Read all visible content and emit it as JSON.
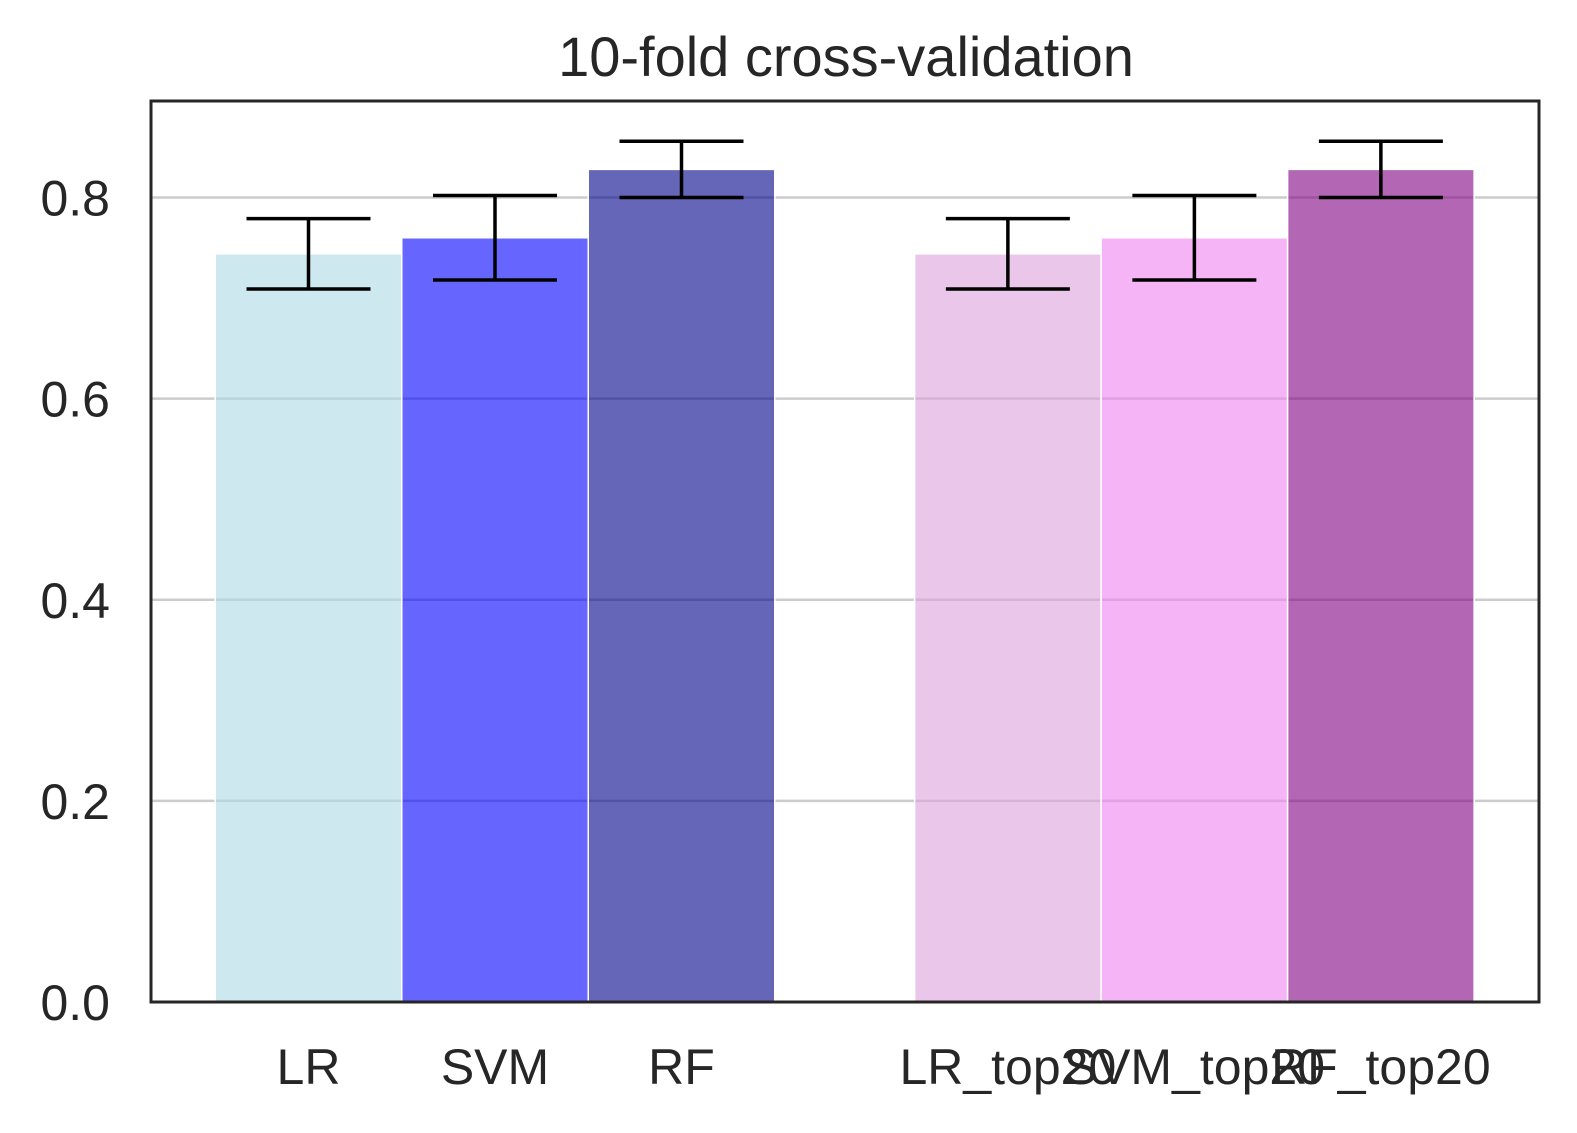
{
  "chart_data": {
    "type": "bar",
    "title": "10-fold cross-validation",
    "xlabel": "",
    "ylabel": "",
    "ylim": [
      0,
      0.896
    ],
    "yticks": [
      0.0,
      0.2,
      0.4,
      0.6,
      0.8
    ],
    "ytick_labels": [
      "0.0",
      "0.2",
      "0.4",
      "0.6",
      "0.8"
    ],
    "grid": "horizontal",
    "categories": [
      "LR",
      "SVM",
      "RF",
      "LR_top20",
      "SVM_top20",
      "RF_top20"
    ],
    "x_positions": [
      0,
      1,
      2,
      3.75,
      4.75,
      5.75
    ],
    "values": [
      0.744,
      0.76,
      0.828,
      0.744,
      0.76,
      0.828
    ],
    "errors": [
      0.035,
      0.042,
      0.028,
      0.035,
      0.042,
      0.028
    ],
    "colors": [
      "#add8e6",
      "#0000ff",
      "#00008b",
      "#dda0dd",
      "#ee82ee",
      "#800080"
    ],
    "bar_alpha": 0.6
  }
}
